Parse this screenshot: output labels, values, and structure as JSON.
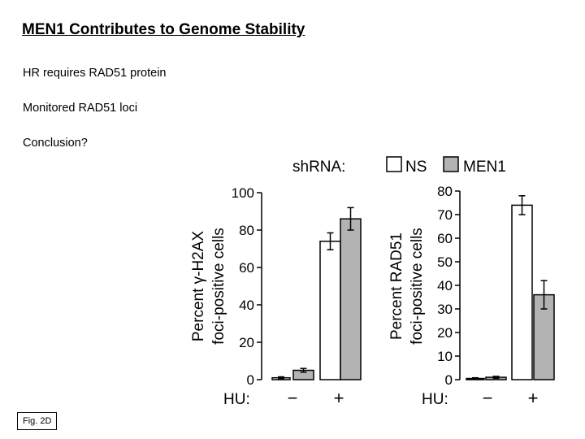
{
  "slide": {
    "title": "MEN1 Contributes to Genome Stability",
    "bullets": [
      "HR requires RAD51 protein",
      "Monitored RAD51 loci",
      "Conclusion?"
    ],
    "fig_label": "Fig. 2D"
  },
  "chart_data": [
    {
      "type": "bar",
      "legend_title": "shRNA:",
      "legend_position": "top",
      "categories": [
        "−",
        "+"
      ],
      "x_prefix": "HU:",
      "ylabel": [
        "Percent γ-H2AX",
        "foci-positive cells"
      ],
      "ylim": [
        0,
        100
      ],
      "yticks": [
        0,
        20,
        40,
        60,
        80,
        100
      ],
      "series": [
        {
          "name": "NS",
          "color": "#ffffff",
          "values": [
            1,
            74
          ],
          "errors": [
            0.5,
            4.5
          ]
        },
        {
          "name": "MEN1",
          "color": "#b3b3b3",
          "values": [
            5,
            86
          ],
          "errors": [
            1,
            6
          ]
        }
      ]
    },
    {
      "type": "bar",
      "legend_title": "shRNA:",
      "legend_position": "top",
      "categories": [
        "−",
        "+"
      ],
      "x_prefix": "HU:",
      "ylabel": [
        "Percent RAD51",
        "foci-positive cells"
      ],
      "ylim": [
        0,
        80
      ],
      "yticks": [
        0,
        10,
        20,
        30,
        40,
        50,
        60,
        70,
        80
      ],
      "series": [
        {
          "name": "NS",
          "color": "#ffffff",
          "values": [
            0.5,
            74
          ],
          "errors": [
            0.3,
            4
          ]
        },
        {
          "name": "MEN1",
          "color": "#b3b3b3",
          "values": [
            1,
            36
          ],
          "errors": [
            0.4,
            6
          ]
        }
      ]
    }
  ]
}
